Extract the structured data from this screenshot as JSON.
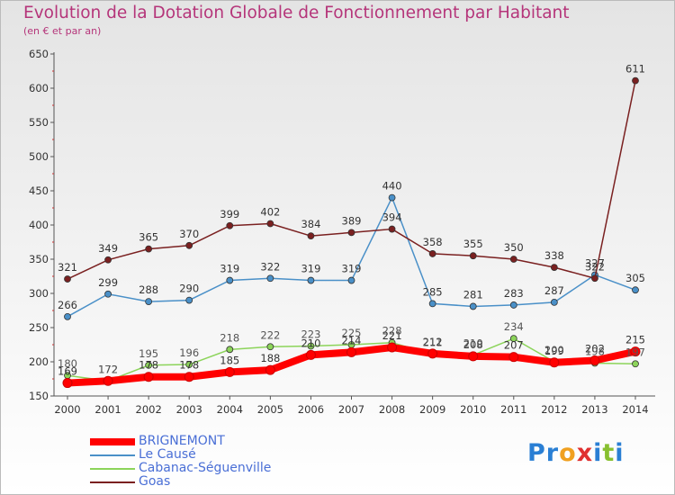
{
  "title": "Evolution de la Dotation Globale de Fonctionnement par Habitant",
  "subtitle": "(en € et par an)",
  "logo": {
    "text": "Proxiti",
    "letters": [
      "P",
      "r",
      "o",
      "x",
      "i",
      "t",
      "i"
    ],
    "colors": [
      "#2a7fd4",
      "#2a7fd4",
      "#f0a020",
      "#e03030",
      "#2a7fd4",
      "#88c030",
      "#2a7fd4"
    ]
  },
  "chart_data": {
    "type": "line",
    "title": "Evolution de la Dotation Globale de Fonctionnement par Habitant",
    "subtitle": "(en € et par an)",
    "categories": [
      "2000",
      "2001",
      "2002",
      "2003",
      "2004",
      "2005",
      "2006",
      "2007",
      "2008",
      "2009",
      "2010",
      "2011",
      "2012",
      "2013",
      "2014"
    ],
    "ylim": [
      150,
      650
    ],
    "yticks": [
      150,
      200,
      250,
      300,
      350,
      400,
      450,
      500,
      550,
      600,
      650
    ],
    "grid": false,
    "legend_position": "bottom-left",
    "series": [
      {
        "name": "BRIGNEMONT",
        "color": "#ff0000",
        "values": [
          169,
          172,
          178,
          178,
          185,
          188,
          210,
          214,
          221,
          212,
          208,
          207,
          199,
          202,
          215
        ]
      },
      {
        "name": "Le Causé",
        "color": "#4a90c8",
        "values": [
          266,
          299,
          288,
          290,
          319,
          322,
          319,
          319,
          440,
          285,
          281,
          283,
          287,
          327,
          305
        ]
      },
      {
        "name": "Cabanac-Séguenville",
        "color": "#8cd45a",
        "values": [
          180,
          172,
          195,
          196,
          218,
          222,
          223,
          225,
          228,
          211,
          210,
          234,
          200,
          198,
          197
        ]
      },
      {
        "name": "Goas",
        "color": "#7a2020",
        "values": [
          321,
          349,
          365,
          370,
          399,
          402,
          384,
          389,
          394,
          358,
          355,
          350,
          338,
          322,
          611
        ]
      }
    ]
  }
}
